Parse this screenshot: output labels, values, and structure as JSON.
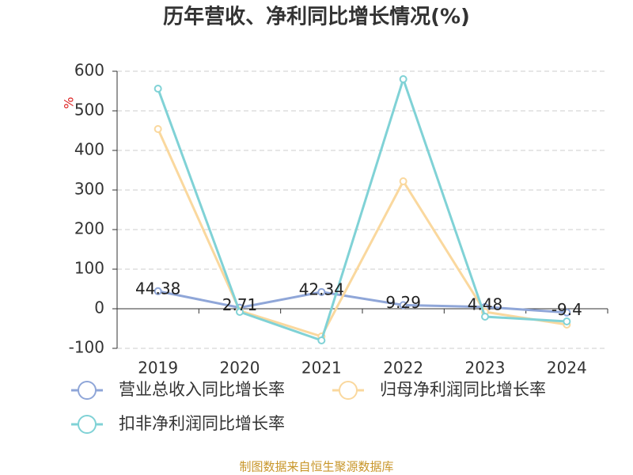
{
  "chart_data": {
    "type": "line",
    "title": "历年营收、净利同比增长情况(%)",
    "y_label": "%",
    "source": "制图数据来自恒生聚源数据库",
    "categories": [
      "2019",
      "2020",
      "2021",
      "2022",
      "2023",
      "2024"
    ],
    "series": [
      {
        "name": "营业总收入同比增长率",
        "color": "#8fa6d8",
        "values": [
          44.38,
          2.71,
          42.34,
          9.29,
          4.48,
          -9.4
        ],
        "data_labels": true
      },
      {
        "name": "归母净利润同比增长率",
        "color": "#fad89e",
        "values": [
          454,
          -5,
          -70,
          322,
          -8,
          -40
        ]
      },
      {
        "name": "扣非净利润同比增长率",
        "color": "#80d2d6",
        "values": [
          556,
          -8,
          -80,
          580,
          -20,
          -32
        ]
      }
    ],
    "ylim": [
      -100,
      600
    ],
    "yticks": [
      -100,
      0,
      100,
      200,
      300,
      400,
      500,
      600
    ],
    "grid": true
  }
}
